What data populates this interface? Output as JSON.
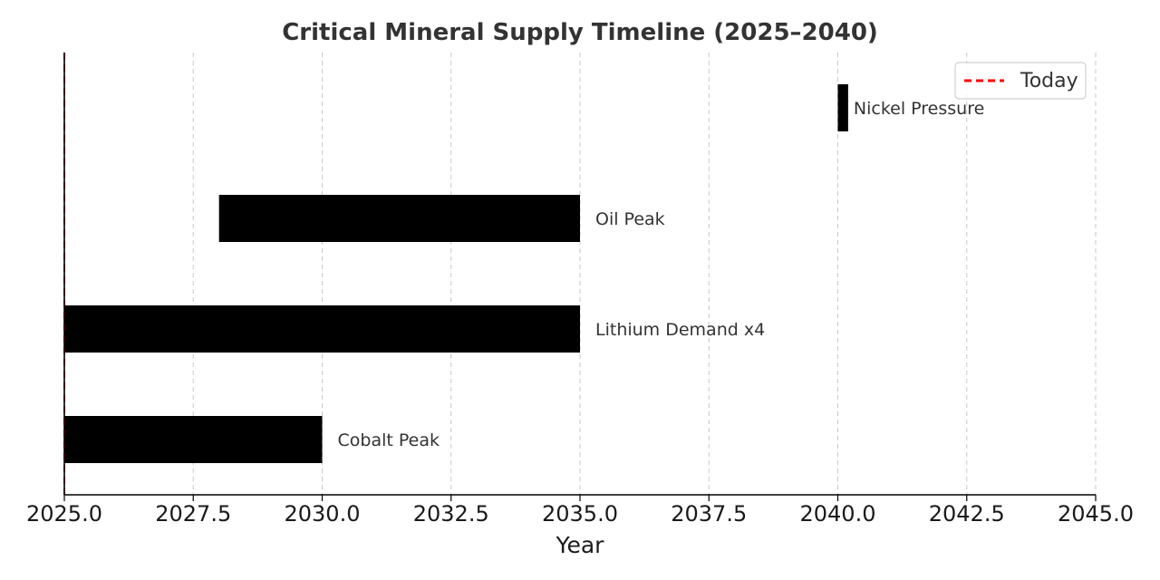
{
  "chart_data": {
    "type": "bar",
    "orientation": "horizontal",
    "title": "Critical Mineral Supply Timeline (2025–2040)",
    "xlabel": "Year",
    "ylabel": "",
    "xlim": [
      2025,
      2045
    ],
    "xticks": [
      "2025.0",
      "2027.5",
      "2030.0",
      "2032.5",
      "2035.0",
      "2037.5",
      "2040.0",
      "2042.5",
      "2045.0"
    ],
    "grid": "x-dashed",
    "bars": [
      {
        "label": "Cobalt Peak",
        "start": 2025,
        "end": 2030
      },
      {
        "label": "Lithium Demand x4",
        "start": 2025,
        "end": 2035
      },
      {
        "label": "Oil Peak",
        "start": 2028,
        "end": 2035
      },
      {
        "label": "Nickel Pressure",
        "start": 2040,
        "end": 2040.2
      }
    ],
    "reference_line": {
      "label": "Today",
      "x": 2025,
      "style": "dashed",
      "color": "#ff0000"
    },
    "bar_color": "#000000",
    "legend": {
      "position": "top-right",
      "entries": [
        "Today"
      ]
    }
  }
}
